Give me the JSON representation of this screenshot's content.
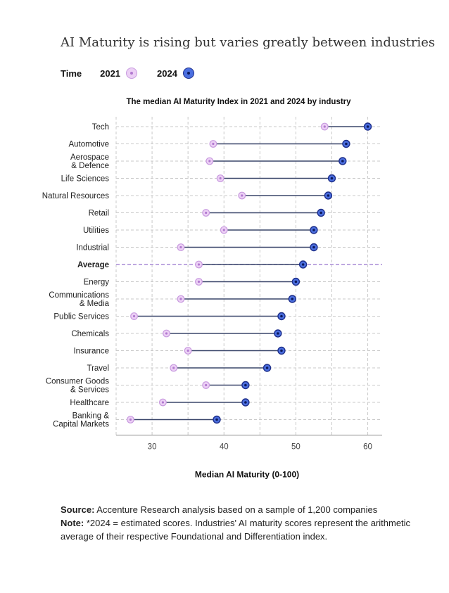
{
  "headline": "AI Maturity is rising but varies greatly between industries",
  "legend": {
    "title": "Time",
    "items": [
      {
        "label": "2021",
        "color": "#d9b3ee"
      },
      {
        "label": "2024",
        "color": "#3b5fd8"
      }
    ]
  },
  "chart_data": {
    "type": "dumbbell",
    "title": "The median AI Maturity Index in 2021 and 2024 by industry",
    "xlabel": "Median AI Maturity (0-100)",
    "ylabel": "",
    "xlim": [
      25,
      62
    ],
    "xticks": [
      30,
      40,
      50,
      60
    ],
    "grid": true,
    "legend_position": "top-left",
    "series": [
      {
        "name": "2021"
      },
      {
        "name": "2024"
      }
    ],
    "categories": [
      {
        "label": [
          "Tech"
        ],
        "v2021": 54,
        "v2024": 60
      },
      {
        "label": [
          "Automotive"
        ],
        "v2021": 38.5,
        "v2024": 57
      },
      {
        "label": [
          "Aerospace",
          "& Defence"
        ],
        "v2021": 38,
        "v2024": 56.5
      },
      {
        "label": [
          "Life Sciences"
        ],
        "v2021": 39.5,
        "v2024": 55
      },
      {
        "label": [
          "Natural Resources"
        ],
        "v2021": 42.5,
        "v2024": 54.5
      },
      {
        "label": [
          "Retail"
        ],
        "v2021": 37.5,
        "v2024": 53.5
      },
      {
        "label": [
          "Utilities"
        ],
        "v2021": 40,
        "v2024": 52.5
      },
      {
        "label": [
          "Industrial"
        ],
        "v2021": 34,
        "v2024": 52.5
      },
      {
        "label": [
          "Average"
        ],
        "v2021": 36.5,
        "v2024": 51,
        "highlight": true
      },
      {
        "label": [
          "Energy"
        ],
        "v2021": 36.5,
        "v2024": 50
      },
      {
        "label": [
          "Communications",
          "& Media"
        ],
        "v2021": 34,
        "v2024": 49.5
      },
      {
        "label": [
          "Public Services"
        ],
        "v2021": 27.5,
        "v2024": 48
      },
      {
        "label": [
          "Chemicals"
        ],
        "v2021": 32,
        "v2024": 47.5
      },
      {
        "label": [
          "Insurance"
        ],
        "v2021": 35,
        "v2024": 48
      },
      {
        "label": [
          "Travel"
        ],
        "v2021": 33,
        "v2024": 46
      },
      {
        "label": [
          "Consumer Goods",
          "& Services"
        ],
        "v2021": 37.5,
        "v2024": 43
      },
      {
        "label": [
          "Healthcare"
        ],
        "v2021": 31.5,
        "v2024": 43
      },
      {
        "label": [
          "Banking &",
          "Capital Markets"
        ],
        "v2021": 27,
        "v2024": 39
      }
    ]
  },
  "footer": {
    "source_label": "Source:",
    "source_text": " Accenture Research analysis based on a sample of 1,200 companies",
    "note_label": "Note:",
    "note_text": " *2024 = estimated scores. Industries' AI maturity scores represent the arithmetic average of their respective Foundational and Differentiation index."
  },
  "colors": {
    "c2021_fill": "#ecd0f5",
    "c2021_stroke": "#c89adf",
    "c2021_dot": "#b27ad0",
    "c2024_fill": "#4b6fe0",
    "c2024_stroke": "#1e2f8a",
    "c2024_dot": "#0d1a5e",
    "connector": "#3a466a",
    "average_line": "#a98bd6",
    "grid": "#c9c9c9",
    "axis": "#888888"
  }
}
